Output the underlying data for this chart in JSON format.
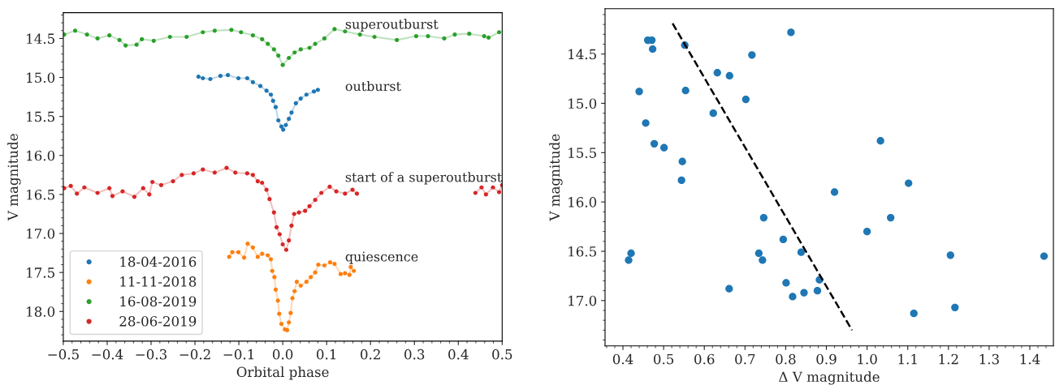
{
  "chart_data": [
    {
      "type": "line",
      "xlabel": "Orbital phase",
      "ylabel": "V magnitude",
      "xlim": [
        -0.5,
        0.5
      ],
      "ylim": [
        18.38,
        14.17
      ],
      "xticks": [
        {
          "value": -0.5,
          "label": "−0.5"
        },
        {
          "value": -0.4,
          "label": "−0.4"
        },
        {
          "value": -0.3,
          "label": "−0.3"
        },
        {
          "value": -0.2,
          "label": "−0.2"
        },
        {
          "value": -0.1,
          "label": "−0.1"
        },
        {
          "value": 0,
          "label": "0.0"
        },
        0.1,
        0.2,
        0.3,
        0.4,
        0.5
      ],
      "yticks": [
        14.5,
        {
          "value": 15,
          "label": "15.0"
        },
        15.5,
        {
          "value": 16,
          "label": "16.0"
        },
        16.5,
        {
          "value": 17,
          "label": "17.0"
        },
        17.5,
        {
          "value": 18,
          "label": "18.0"
        }
      ],
      "marker": "circle",
      "legend": "bottom left",
      "grid": false,
      "annotations": [
        "superoutburst",
        "outburst",
        "start of a superoutburst",
        "quiescence"
      ],
      "series": [
        {
          "name": "18-04-2016",
          "color": "#1f77b4",
          "x": [
            -0.192,
            -0.182,
            -0.165,
            -0.142,
            -0.125,
            -0.101,
            -0.081,
            -0.068,
            -0.051,
            -0.037,
            -0.027,
            -0.022,
            -0.016,
            -0.01,
            -0.003,
            0.001,
            0.007,
            0.014,
            0.02,
            0.03,
            0.041,
            0.054,
            0.071,
            0.08
          ],
          "values": [
            14.99,
            15.01,
            15.02,
            14.98,
            14.97,
            15.01,
            15.01,
            15.06,
            15.11,
            15.17,
            15.22,
            15.3,
            15.38,
            15.55,
            15.63,
            15.67,
            15.61,
            15.53,
            15.45,
            15.33,
            15.27,
            15.22,
            15.18,
            15.16
          ]
        },
        {
          "name": "11-11-2018",
          "color": "#ff7f0e",
          "x": [
            -0.122,
            -0.115,
            -0.101,
            -0.088,
            -0.08,
            -0.068,
            -0.057,
            -0.047,
            -0.034,
            -0.027,
            -0.024,
            -0.019,
            -0.016,
            -0.011,
            -0.008,
            -0.003,
            0.005,
            0.01,
            0.014,
            0.018,
            0.022,
            0.027,
            0.032,
            0.041,
            0.054,
            0.064,
            0.074,
            0.081,
            0.095,
            0.108,
            0.118,
            0.132,
            0.142,
            0.152,
            0.155,
            0.162
          ],
          "values": [
            17.3,
            17.24,
            17.24,
            17.31,
            17.13,
            17.18,
            17.3,
            17.26,
            17.28,
            17.33,
            17.48,
            17.56,
            17.72,
            17.86,
            18.03,
            18.16,
            18.23,
            18.24,
            18.14,
            18.02,
            17.83,
            17.74,
            17.62,
            17.67,
            17.62,
            17.56,
            17.5,
            17.4,
            17.41,
            17.37,
            17.39,
            17.52,
            17.51,
            17.53,
            17.43,
            17.48
          ]
        },
        {
          "name": "16-08-2019",
          "color": "#2ca02c",
          "x": [
            -0.498,
            -0.473,
            -0.446,
            -0.422,
            -0.395,
            -0.372,
            -0.358,
            -0.333,
            -0.321,
            -0.294,
            -0.257,
            -0.219,
            -0.182,
            -0.155,
            -0.117,
            -0.095,
            -0.068,
            -0.047,
            -0.034,
            -0.02,
            -0.01,
            0.0,
            0.014,
            0.027,
            0.041,
            0.061,
            0.074,
            0.095,
            0.118,
            0.142,
            0.176,
            0.209,
            0.26,
            0.304,
            0.331,
            0.368,
            0.392,
            0.425,
            0.459,
            0.469,
            0.493
          ],
          "values": [
            14.45,
            14.4,
            14.45,
            14.5,
            14.46,
            14.52,
            14.59,
            14.58,
            14.51,
            14.53,
            14.48,
            14.48,
            14.42,
            14.4,
            14.39,
            14.42,
            14.46,
            14.51,
            14.57,
            14.64,
            14.72,
            14.84,
            14.75,
            14.68,
            14.64,
            14.62,
            14.57,
            14.5,
            14.38,
            14.41,
            14.45,
            14.48,
            14.52,
            14.47,
            14.47,
            14.5,
            14.45,
            14.44,
            14.47,
            14.49,
            14.42
          ]
        },
        {
          "name": "28-06-2019",
          "color": "#d62728",
          "x": [
            -0.498,
            -0.483,
            -0.469,
            -0.452,
            -0.422,
            -0.395,
            -0.388,
            -0.365,
            -0.338,
            -0.318,
            -0.304,
            -0.297,
            -0.277,
            -0.25,
            -0.23,
            -0.203,
            -0.182,
            -0.155,
            -0.128,
            -0.108,
            -0.081,
            -0.068,
            -0.057,
            -0.047,
            -0.037,
            -0.03,
            -0.02,
            -0.014,
            -0.007,
            0.0,
            0.008,
            0.014,
            0.02,
            0.026,
            0.037,
            0.051,
            0.061,
            0.074,
            0.088,
            0.107,
            0.122,
            0.142,
            0.159,
            0.169,
            null,
            0.439,
            0.453,
            0.463,
            0.479,
            0.493,
            0.5
          ],
          "values": [
            16.42,
            16.39,
            16.49,
            16.41,
            16.48,
            16.42,
            16.52,
            16.46,
            16.53,
            16.42,
            16.5,
            16.34,
            16.38,
            16.33,
            16.25,
            16.23,
            16.18,
            16.22,
            16.16,
            16.22,
            16.23,
            16.25,
            16.33,
            16.35,
            16.44,
            16.56,
            16.73,
            16.92,
            17.01,
            17.14,
            17.21,
            17.09,
            16.9,
            16.75,
            16.73,
            16.71,
            16.65,
            16.57,
            16.48,
            16.4,
            16.46,
            16.49,
            16.44,
            16.49,
            null,
            16.48,
            16.41,
            16.5,
            16.41,
            16.47,
            16.38
          ]
        }
      ]
    },
    {
      "type": "scatter",
      "xlabel": "Δ V magnitude",
      "ylabel": "V magnitude",
      "xlim": [
        0.356,
        1.458
      ],
      "ylim": [
        17.46,
        14.04
      ],
      "xticks": [
        0.4,
        0.5,
        0.6,
        0.7,
        0.8,
        0.9,
        {
          "value": 1,
          "label": "1.0"
        },
        1.1,
        1.2,
        1.3,
        1.4
      ],
      "yticks": [
        14.5,
        {
          "value": 15,
          "label": "15.0"
        },
        15.5,
        {
          "value": 16,
          "label": "16.0"
        },
        16.5,
        {
          "value": 17,
          "label": "17.0"
        }
      ],
      "grid": false,
      "series": [
        {
          "type": "scatter",
          "color": "#1f77b4",
          "marker": "circle",
          "x": [
            0.813,
            0.461,
            0.471,
            0.473,
            0.552,
            0.717,
            0.632,
            0.662,
            0.44,
            0.554,
            0.702,
            0.622,
            0.456,
            0.477,
            0.501,
            0.546,
            0.544,
            1.033,
            1.102,
            0.92,
            0.746,
            1.058,
            1.0,
            0.794,
            0.42,
            0.414,
            0.734,
            0.743,
            0.838,
            1.205,
            1.435,
            0.661,
            0.801,
            0.883,
            0.817,
            0.845,
            0.878,
            1.216,
            1.115
          ],
          "values": [
            14.28,
            14.36,
            14.36,
            14.45,
            14.41,
            14.51,
            14.69,
            14.72,
            14.88,
            14.87,
            14.96,
            15.1,
            15.2,
            15.41,
            15.45,
            15.59,
            15.78,
            15.38,
            15.81,
            15.9,
            16.16,
            16.16,
            16.3,
            16.38,
            16.52,
            16.59,
            16.52,
            16.59,
            16.51,
            16.54,
            16.55,
            16.88,
            16.82,
            16.79,
            16.96,
            16.92,
            16.9,
            17.07,
            17.13
          ]
        },
        {
          "type": "line",
          "color": "#000000",
          "line_style": "dashed",
          "marker": "none",
          "x": [
            0.522,
            0.963
          ],
          "values": [
            14.19,
            17.3
          ]
        }
      ]
    }
  ]
}
